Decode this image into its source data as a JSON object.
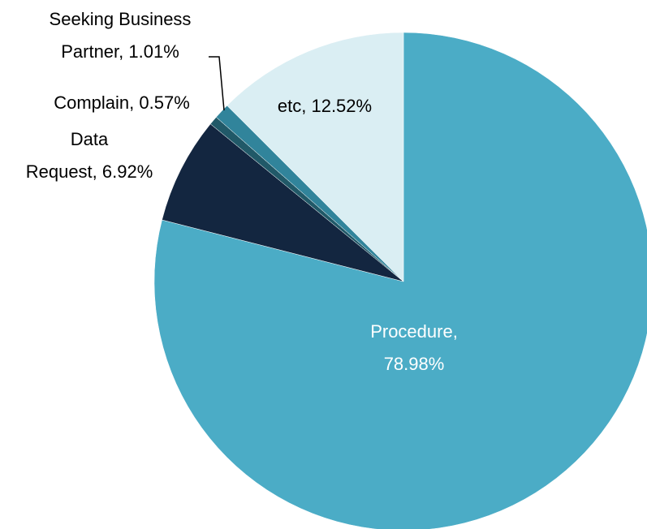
{
  "chart_data": {
    "type": "pie",
    "values": [
      78.98,
      6.92,
      0.57,
      1.01,
      12.52
    ],
    "value_labels": [
      [
        "Procedure,",
        "78.98%"
      ],
      [
        "Data",
        "Request, 6.92%"
      ],
      [
        "Complain, 0.57%"
      ],
      [
        "Seeking Business",
        "Partner, 1.01%"
      ],
      [
        "etc, 12.52%"
      ]
    ],
    "colors": [
      "#4bacc6",
      "#132640",
      "#215968",
      "#31849b",
      "#daeef3"
    ]
  }
}
